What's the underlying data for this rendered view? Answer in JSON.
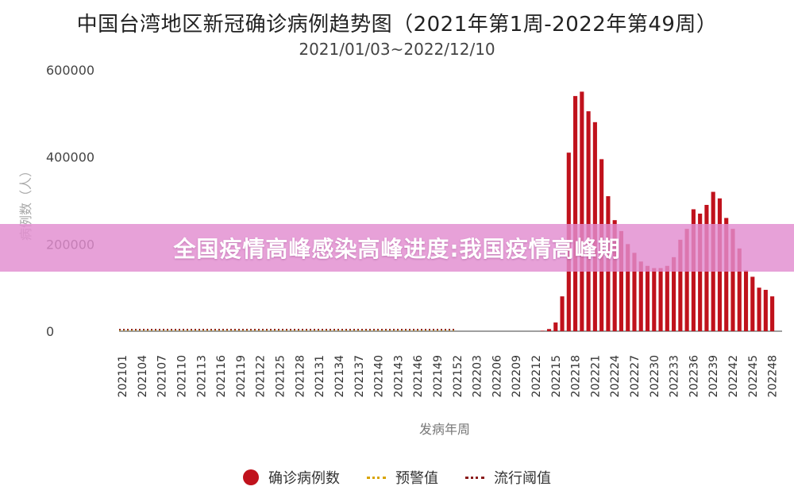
{
  "chart_data": {
    "type": "bar",
    "title": "中国台湾地区新冠确诊病例趋势图（2021年第1周-2022年第49周）",
    "subtitle": "2021/01/03~2022/12/10",
    "xlabel": "发病年周",
    "ylabel": "病例数（人）",
    "ylim": [
      0,
      600000
    ],
    "yticks": [
      "0",
      "200000",
      "400000",
      "600000"
    ],
    "grid": false,
    "legend_position": "bottom",
    "x_tick_labels": [
      "202101",
      "202104",
      "202107",
      "202110",
      "202113",
      "202116",
      "202119",
      "202122",
      "202125",
      "202128",
      "202131",
      "202134",
      "202137",
      "202140",
      "202143",
      "202146",
      "202149",
      "202152",
      "202203",
      "202206",
      "202209",
      "202212",
      "202215",
      "202218",
      "202221",
      "202224",
      "202227",
      "202230",
      "202233",
      "202236",
      "202239",
      "202242",
      "202245",
      "202248"
    ],
    "series": [
      {
        "name": "确诊病例数",
        "color": "#c0121c",
        "x": [
          "202213",
          "202214",
          "202215",
          "202216",
          "202217",
          "202218",
          "202219",
          "202220",
          "202221",
          "202222",
          "202223",
          "202224",
          "202225",
          "202226",
          "202227",
          "202228",
          "202229",
          "202230",
          "202231",
          "202232",
          "202233",
          "202234",
          "202235",
          "202236",
          "202237",
          "202238",
          "202239",
          "202240",
          "202241",
          "202242",
          "202243",
          "202244",
          "202245",
          "202246",
          "202247",
          "202248",
          "202249"
        ],
        "values": [
          1000,
          5000,
          20000,
          80000,
          410000,
          540000,
          550000,
          505000,
          480000,
          395000,
          310000,
          255000,
          230000,
          200000,
          180000,
          160000,
          150000,
          145000,
          145000,
          150000,
          170000,
          210000,
          235000,
          280000,
          270000,
          290000,
          320000,
          305000,
          260000,
          235000,
          190000,
          140000,
          125000,
          100000,
          95000,
          80000,
          0
        ]
      },
      {
        "name": "预警值",
        "color": "#d9a400",
        "style": "dotted"
      },
      {
        "name": "流行阈值",
        "color": "#8a1b1b",
        "style": "dotted"
      }
    ]
  },
  "banner": {
    "text": "全国疫情高峰感染高峰进度:我国疫情高峰期"
  }
}
